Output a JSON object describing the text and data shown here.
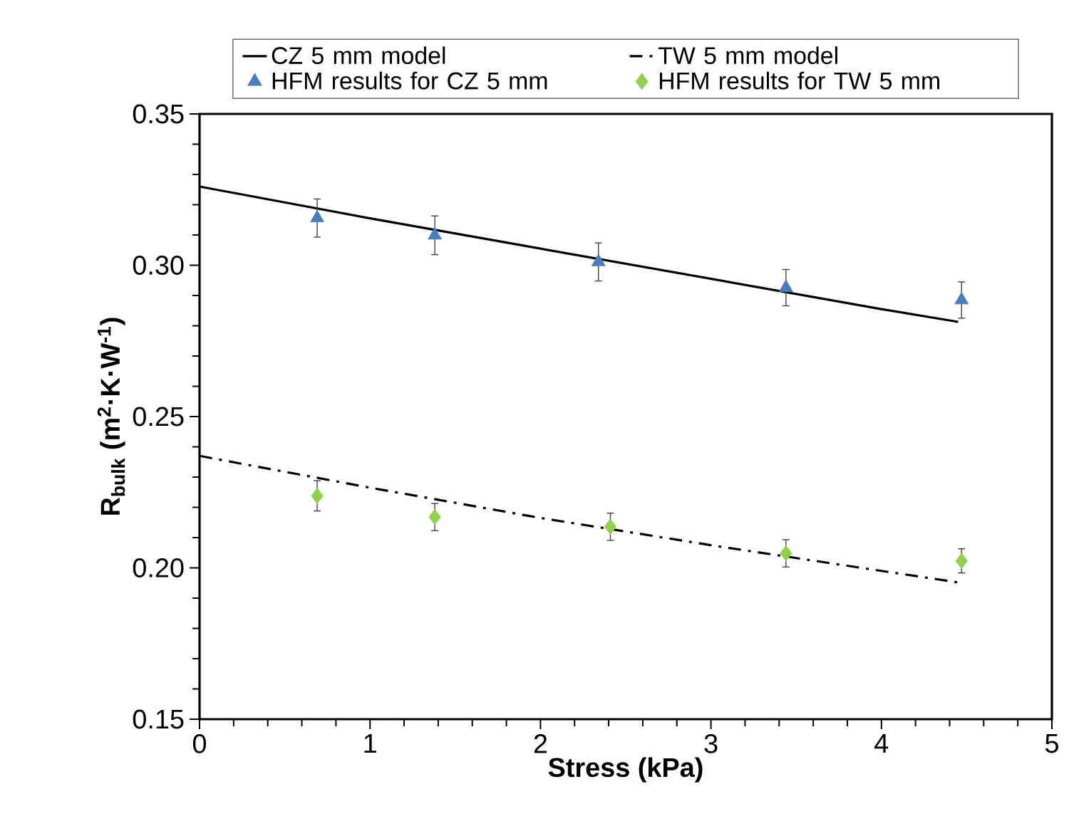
{
  "chart_data": {
    "type": "line",
    "xlabel": "Stress (kPa)",
    "ylabel": "R$_{bulk}$ (m$^{2}$·K·W$^{-1}$)",
    "xlim": [
      0,
      5
    ],
    "ylim": [
      0.15,
      0.35
    ],
    "xticks": [
      0,
      1,
      2,
      3,
      4,
      5
    ],
    "yticks": [
      {
        "value": 0.15,
        "label": "0.15"
      },
      {
        "value": 0.2,
        "label": "0.20"
      },
      {
        "value": 0.25,
        "label": "0.25"
      },
      {
        "value": 0.3,
        "label": "0.30"
      },
      {
        "value": 0.35,
        "label": "0.35"
      }
    ],
    "legend": "top",
    "series": [
      {
        "name": "CZ 5 mm model",
        "line_style": "solid",
        "color": "#000000",
        "x": [
          0,
          1,
          2,
          3,
          4,
          4.45
        ],
        "values": [
          0.326,
          0.3155,
          0.3055,
          0.2955,
          0.2855,
          0.2813
        ]
      },
      {
        "name": "TW 5 mm model",
        "line_style": "dashdot",
        "color": "#000000",
        "x": [
          0,
          1,
          2,
          3,
          4,
          4.45
        ],
        "values": [
          0.237,
          0.2265,
          0.2165,
          0.2075,
          0.199,
          0.1952
        ]
      },
      {
        "name": "HFM results for CZ 5 mm",
        "type": "scatter",
        "marker": "triangle",
        "color": "#4a7ebb",
        "x": [
          0.69,
          1.38,
          2.34,
          3.44,
          4.47
        ],
        "values": [
          0.3156,
          0.3099,
          0.3011,
          0.2926,
          0.2885
        ],
        "errors": [
          0.0063,
          0.0064,
          0.0063,
          0.006,
          0.006
        ]
      },
      {
        "name": "HFM results for TW 5 mm",
        "type": "scatter",
        "marker": "diamond",
        "color": "#92d050",
        "x": [
          0.69,
          1.38,
          2.41,
          3.44,
          4.47
        ],
        "values": [
          0.2238,
          0.2168,
          0.2136,
          0.2048,
          0.2023
        ],
        "errors": [
          0.005,
          0.0045,
          0.0045,
          0.0045,
          0.004
        ]
      }
    ]
  }
}
